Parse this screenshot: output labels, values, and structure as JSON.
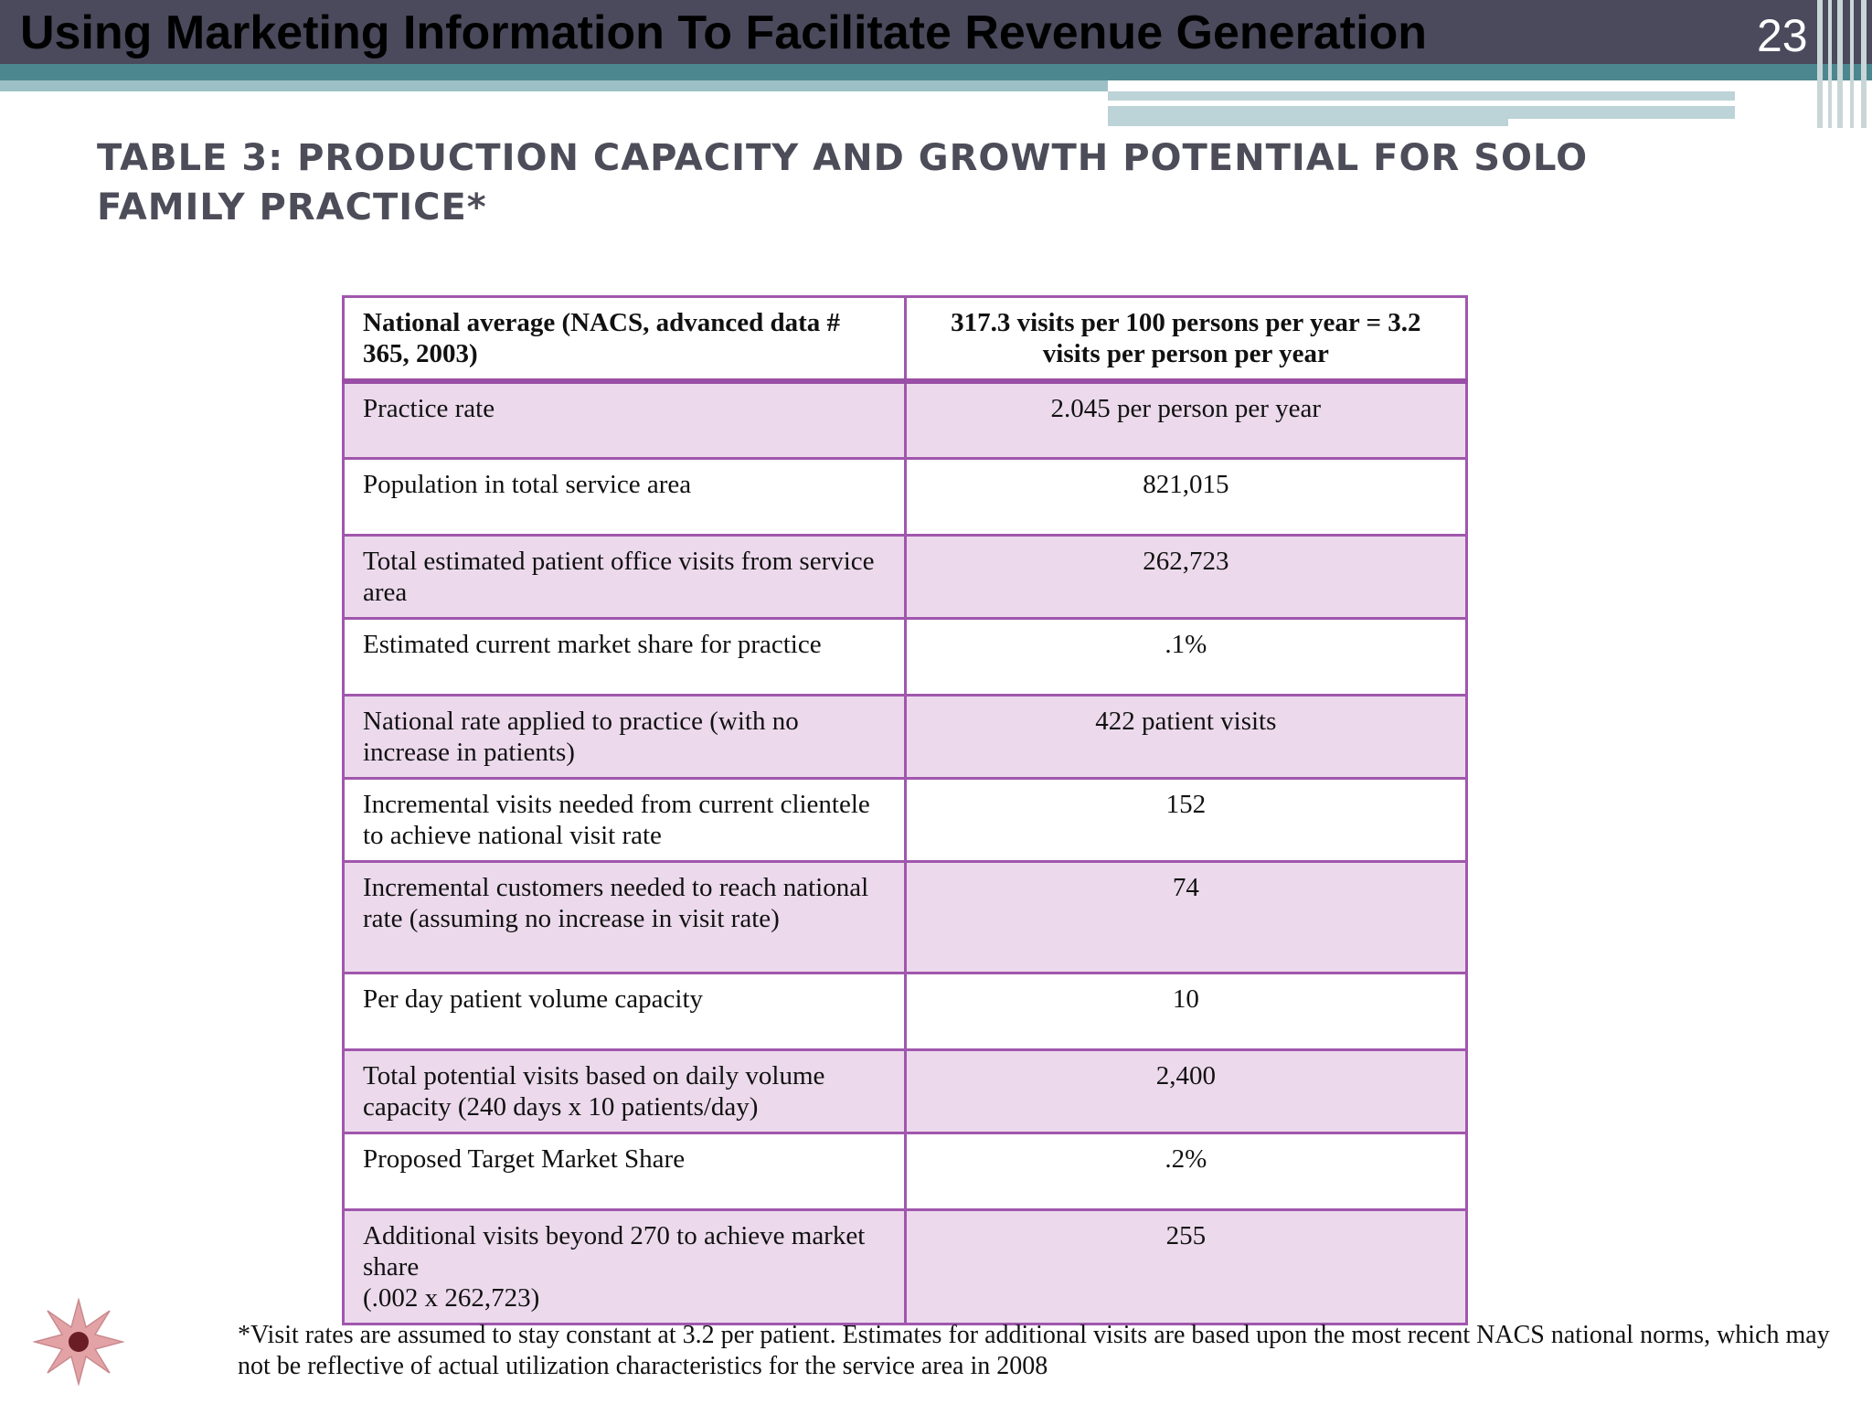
{
  "header": {
    "title": "Using Marketing Information To Facilitate Revenue Generation",
    "slide_number": "23"
  },
  "slide_title": "TABLE 3:  PRODUCTION CAPACITY AND GROWTH POTENTIAL FOR SOLO FAMILY PRACTICE*",
  "table": {
    "header": {
      "label": "National average (NACS, advanced data # 365, 2003)",
      "value": "317.3 visits per 100 persons per year = 3.2 visits per person per year"
    },
    "rows": [
      {
        "label": "Practice rate",
        "value": "2.045 per person per year"
      },
      {
        "label": "Population in total service area",
        "value": "821,015"
      },
      {
        "label": "Total estimated patient office visits from service area",
        "value": "262,723"
      },
      {
        "label": "Estimated current market share for practice",
        "value": ".1%"
      },
      {
        "label": "National rate applied to practice (with no increase in patients)",
        "value": "422 patient visits"
      },
      {
        "label": "Incremental visits needed from current clientele to achieve national visit rate",
        "value": "152"
      },
      {
        "label": "Incremental  customers needed to reach national rate (assuming no increase in visit rate)",
        "value": "74"
      },
      {
        "label": "Per day  patient volume capacity",
        "value": "10"
      },
      {
        "label": "Total  potential visits based on  daily volume capacity (240 days x 10 patients/day)",
        "value": "2,400"
      },
      {
        "label": "Proposed Target Market Share",
        "value": ".2%"
      },
      {
        "label_line1": "Additional visits beyond 270 to achieve market share",
        "label_line2": "(.002 x 262,723)",
        "value": "255"
      }
    ]
  },
  "footnote": "*Visit rates are assumed to stay constant at 3.2 per patient. Estimates for additional visits are based upon the most recent NACS national norms, which may not be reflective of actual utilization characteristics for the service area in 2008",
  "icons": {
    "corner_decoration": "starburst-icon"
  },
  "colors": {
    "header_band": "#4a4a5c",
    "accent_teal": "#4c8790",
    "table_border": "#a057ad",
    "row_shade": "#ecdaec"
  }
}
